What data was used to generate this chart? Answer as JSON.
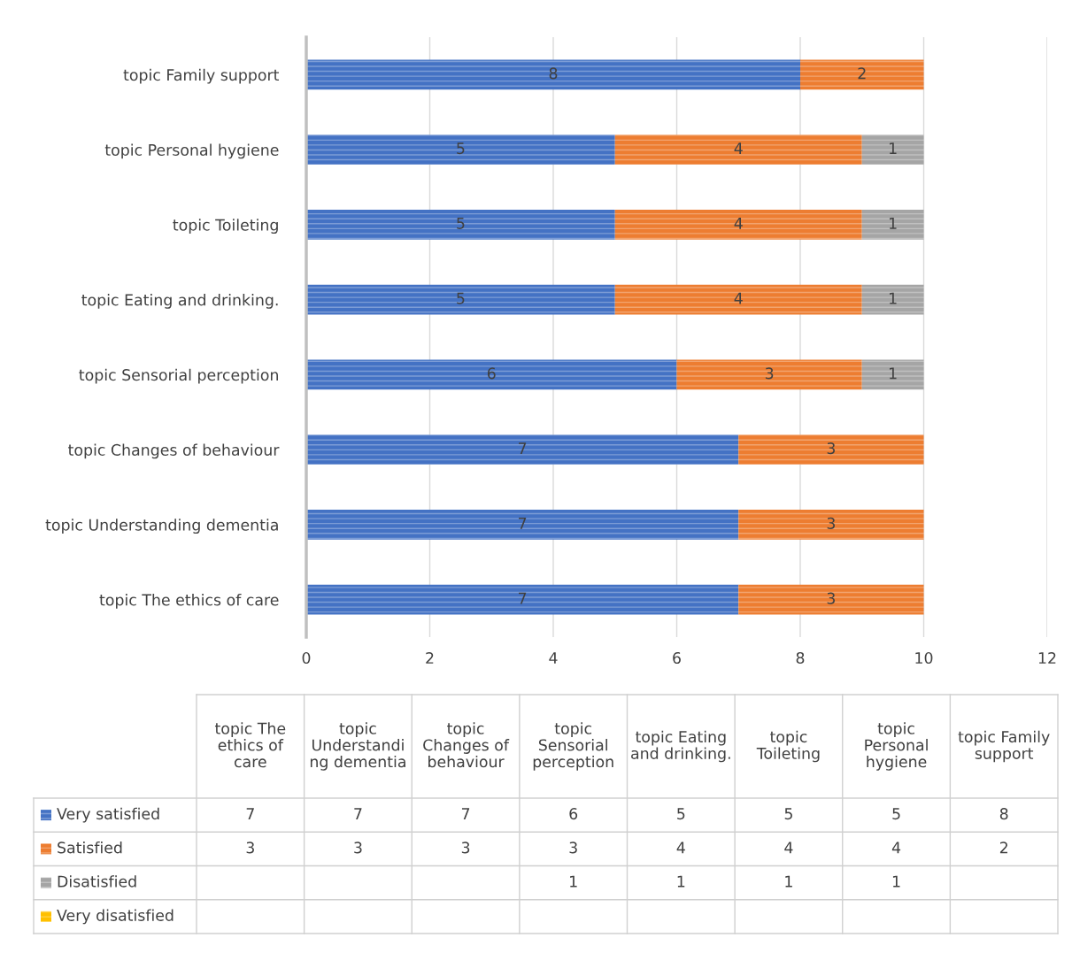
{
  "chart_data": [
    {
      "type": "bar",
      "orientation": "horizontal",
      "stacked": true,
      "categories": [
        "topic Family support",
        "topic Personal hygiene",
        "topic Toileting",
        "topic Eating and drinking.",
        "topic Sensorial perception",
        "topic Changes of behaviour",
        "topic Understanding dementia",
        "topic The ethics of care"
      ],
      "series": [
        {
          "color": "#4472c4",
          "values": [
            8,
            5,
            5,
            5,
            6,
            7,
            7,
            7
          ]
        },
        {
          "color": "#ed7d31",
          "values": [
            2,
            4,
            4,
            4,
            3,
            3,
            3,
            3
          ]
        },
        {
          "color": "#a5a5a5",
          "values": [
            null,
            1,
            1,
            1,
            1,
            null,
            null,
            null
          ]
        },
        {
          "color": "#ffc000",
          "values": [
            null,
            null,
            null,
            null,
            null,
            null,
            null,
            null
          ]
        }
      ],
      "xlim": [
        0,
        12
      ],
      "xticks": [
        0,
        2,
        4,
        6,
        8,
        10,
        12
      ],
      "grid": "x",
      "data_labels": true
    },
    {
      "type": "other",
      "categories": [
        "topic The ethics of care",
        "topic Understanding dementia",
        "topic Changes of behaviour",
        "topic Sensorial perception",
        "topic Eating and drinking.",
        "topic Toileting",
        "topic Personal hygiene",
        "topic Family support"
      ],
      "series": [
        {
          "name": "Very satisfied",
          "color": "#4472c4",
          "values": [
            7,
            7,
            7,
            6,
            5,
            5,
            5,
            8
          ]
        },
        {
          "name": "Satisfied",
          "color": "#ed7d31",
          "values": [
            3,
            3,
            3,
            3,
            4,
            4,
            4,
            2
          ]
        },
        {
          "name": "Disatisfied",
          "color": "#a5a5a5",
          "values": [
            null,
            null,
            null,
            1,
            1,
            1,
            1,
            null
          ]
        },
        {
          "name": "Very disatisfied",
          "color": "#ffc000",
          "values": [
            null,
            null,
            null,
            null,
            null,
            null,
            null,
            null
          ]
        }
      ],
      "data_labels": true,
      "legend": "left"
    }
  ]
}
